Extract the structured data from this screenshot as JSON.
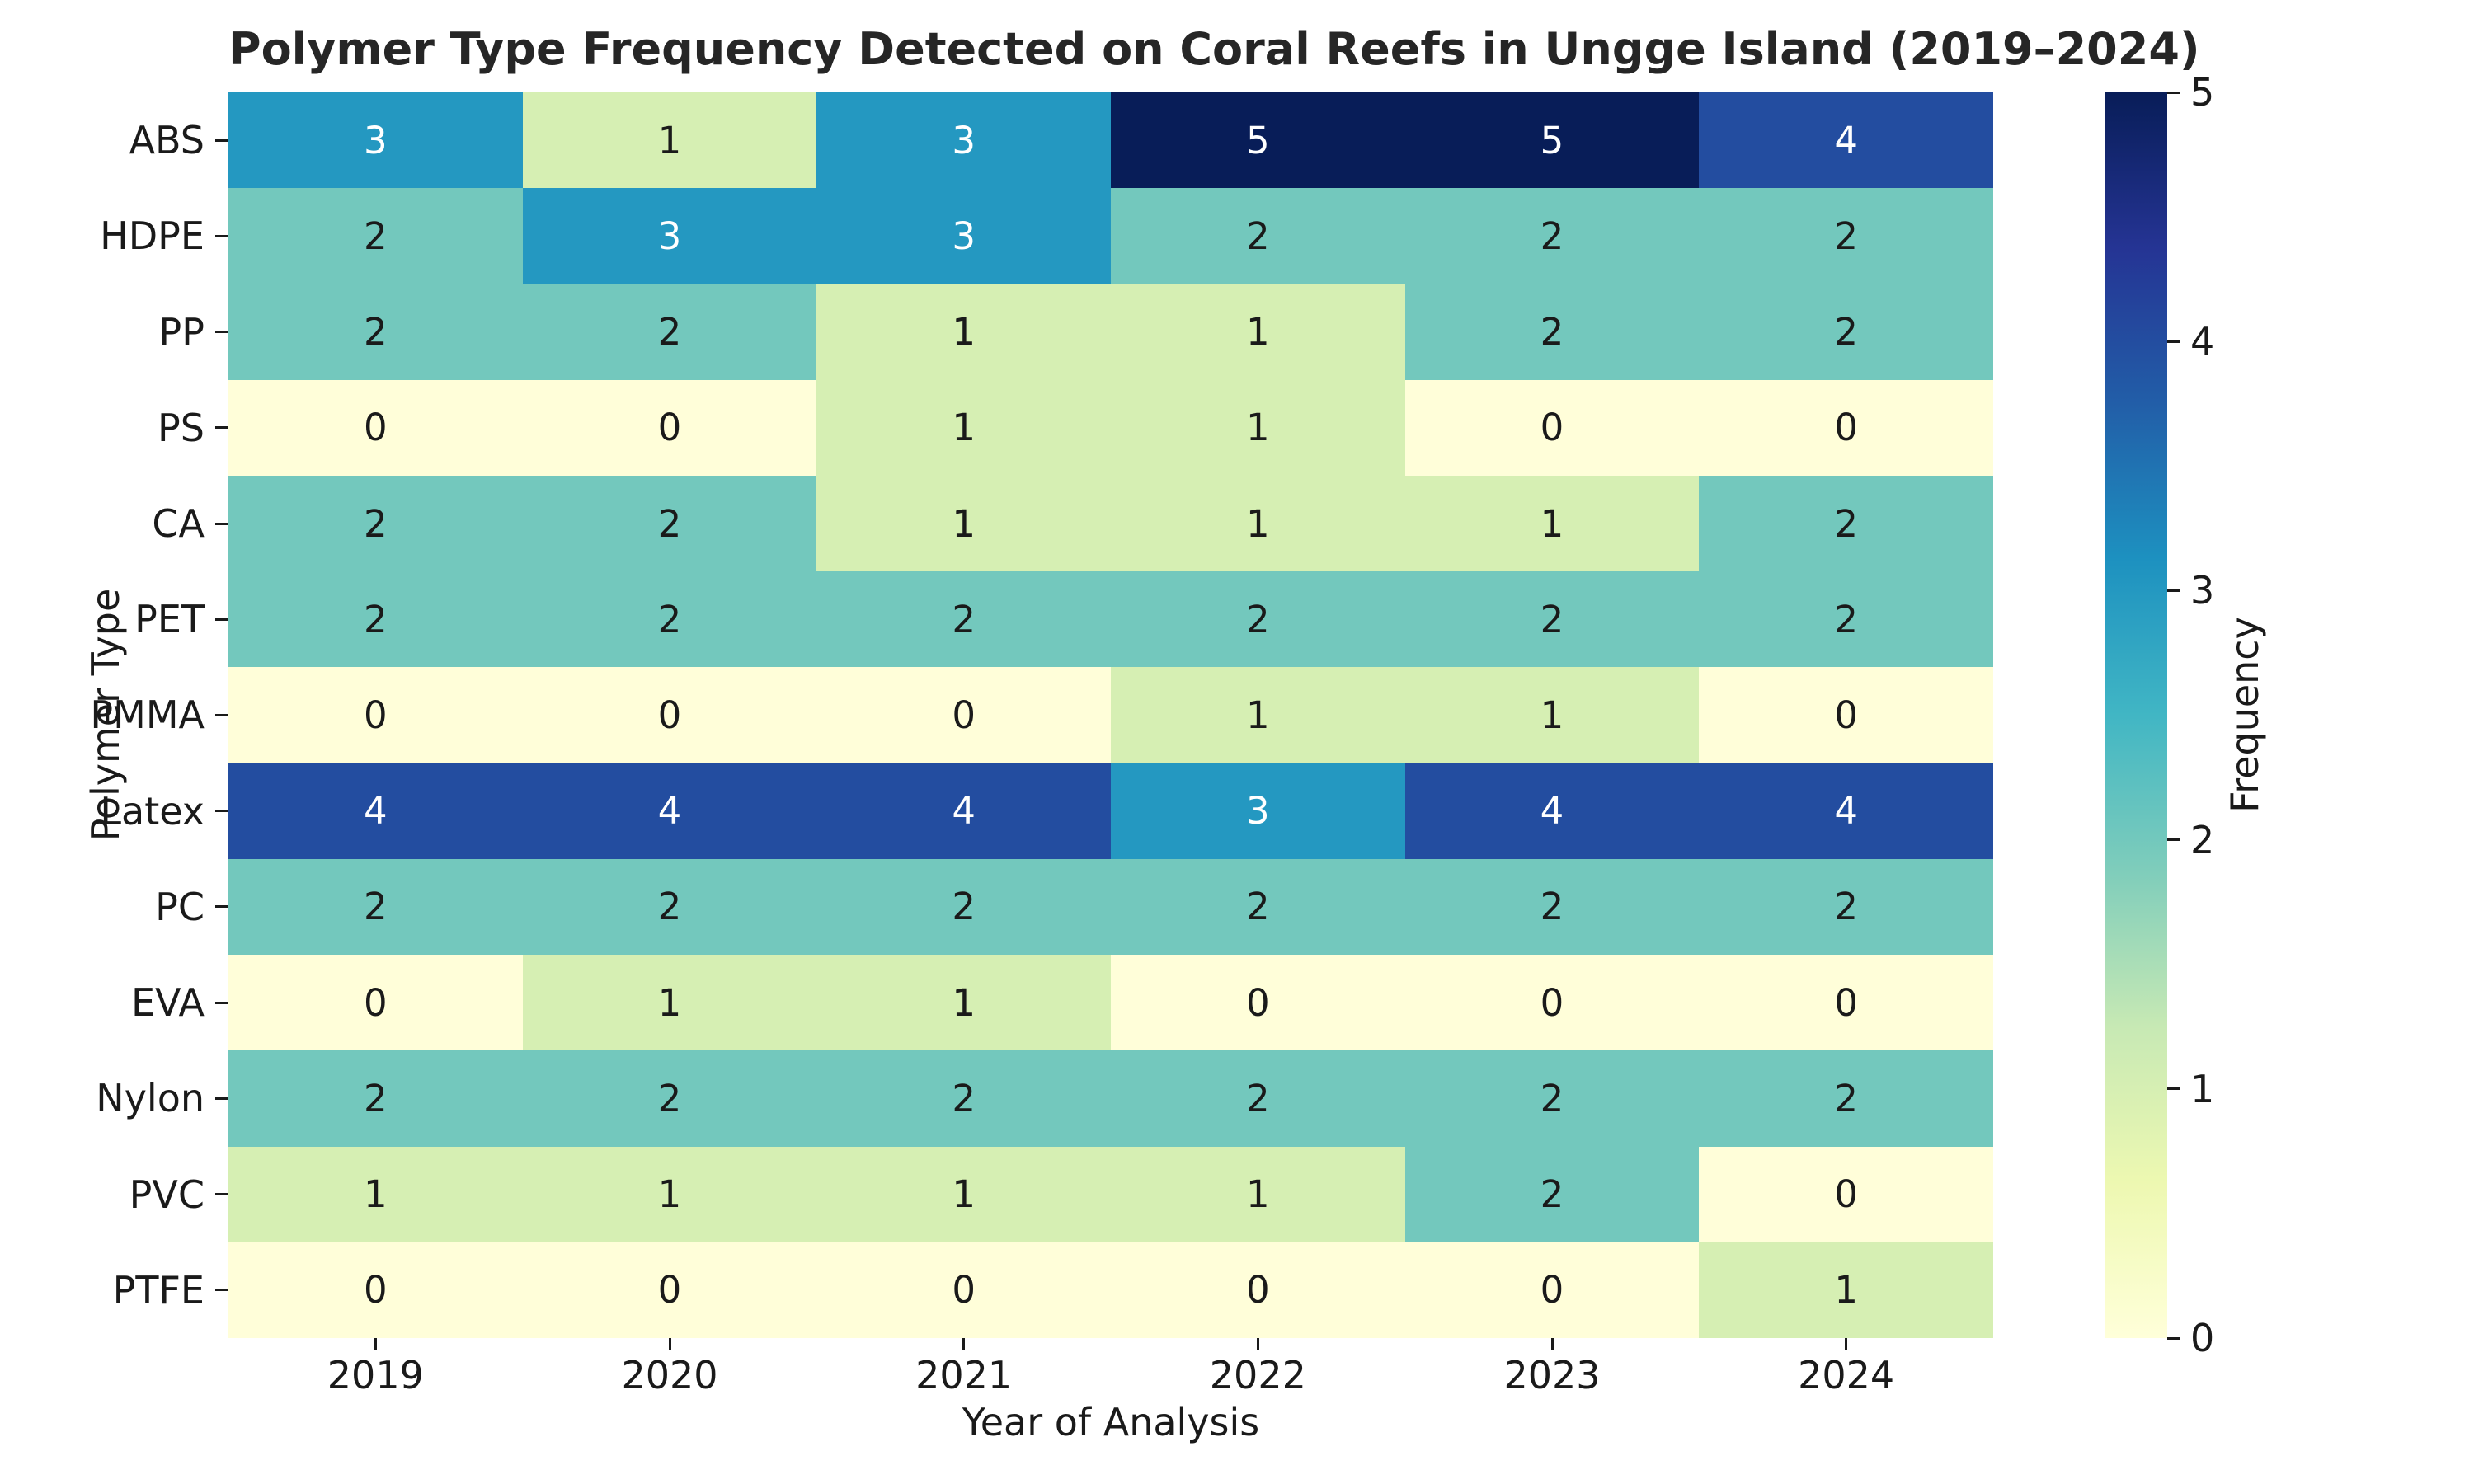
{
  "chart_data": {
    "type": "heatmap",
    "title": "Polymer Type Frequency Detected on Coral Reefs in Ungge Island (2019–2024)",
    "xlabel": "Year of Analysis",
    "ylabel": "Polymer Type",
    "categories_x": [
      "2019",
      "2020",
      "2021",
      "2022",
      "2023",
      "2024"
    ],
    "categories_y": [
      "ABS",
      "HDPE",
      "PP",
      "PS",
      "CA",
      "PET",
      "PMMA",
      "Latex",
      "PC",
      "EVA",
      "Nylon",
      "PVC",
      "PTFE"
    ],
    "values": [
      [
        3,
        1,
        3,
        5,
        5,
        4
      ],
      [
        2,
        3,
        3,
        2,
        2,
        2
      ],
      [
        2,
        2,
        1,
        1,
        2,
        2
      ],
      [
        0,
        0,
        1,
        1,
        0,
        0
      ],
      [
        2,
        2,
        1,
        1,
        1,
        2
      ],
      [
        2,
        2,
        2,
        2,
        2,
        2
      ],
      [
        0,
        0,
        0,
        1,
        1,
        0
      ],
      [
        4,
        4,
        4,
        3,
        4,
        4
      ],
      [
        2,
        2,
        2,
        2,
        2,
        2
      ],
      [
        0,
        1,
        1,
        0,
        0,
        0
      ],
      [
        2,
        2,
        2,
        2,
        2,
        2
      ],
      [
        1,
        1,
        1,
        1,
        2,
        0
      ],
      [
        0,
        0,
        0,
        0,
        0,
        1
      ]
    ],
    "annotations_shown": true,
    "grid": false,
    "colorbar": {
      "label": "Frequency",
      "min": 0,
      "max": 5,
      "ticks": [
        0,
        1,
        2,
        3,
        4,
        5
      ],
      "position": "right"
    },
    "colormap": {
      "name": "YlGnBu",
      "value_colors": {
        "0": "#fffed9",
        "1": "#d6efb3",
        "2": "#73c8bd",
        "3": "#2498c1",
        "4": "#234da0",
        "5": "#081d58"
      },
      "gradient_stops": [
        {
          "pos": 0,
          "color": "#ffffd9"
        },
        {
          "pos": 12.5,
          "color": "#edf8b1"
        },
        {
          "pos": 25,
          "color": "#c7e9b4"
        },
        {
          "pos": 37.5,
          "color": "#7fcdbb"
        },
        {
          "pos": 50,
          "color": "#41b6c4"
        },
        {
          "pos": 62.5,
          "color": "#1d91c0"
        },
        {
          "pos": 75,
          "color": "#225ea8"
        },
        {
          "pos": 87.5,
          "color": "#253494"
        },
        {
          "pos": 100,
          "color": "#081d58"
        }
      ],
      "annotation_dark_text": "#1a1a1a",
      "annotation_light_text": "#ffffff",
      "light_text_from_value": 3
    }
  }
}
